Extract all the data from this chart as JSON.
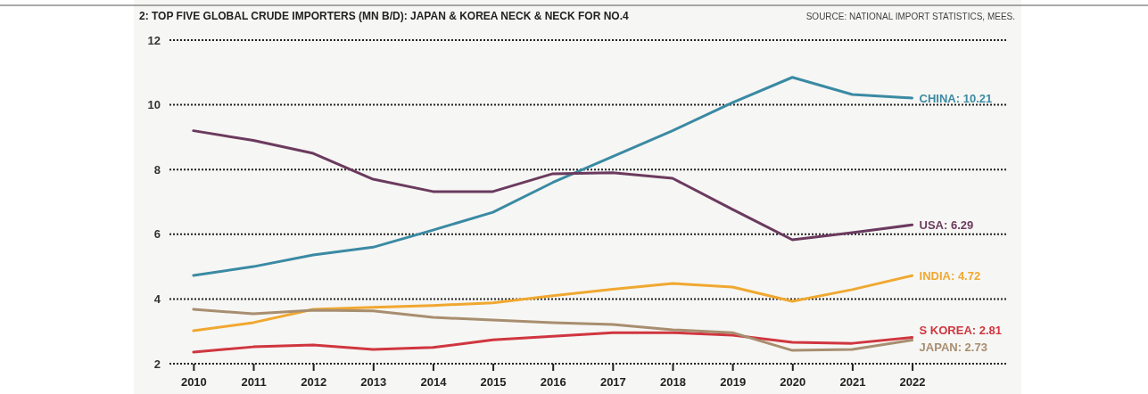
{
  "chart_data": {
    "type": "line",
    "title": "2: TOP FIVE GLOBAL CRUDE IMPORTERS (MN B/D): JAPAN & KOREA NECK & NECK FOR NO.4",
    "annotations": [
      "SOURCE: NATIONAL IMPORT STATISTICS, MEES."
    ],
    "x": [
      2010,
      2011,
      2012,
      2013,
      2014,
      2015,
      2016,
      2017,
      2018,
      2019,
      2020,
      2021,
      2022
    ],
    "xlim": [
      2009.6,
      2023.6
    ],
    "xticks": [
      2010,
      2011,
      2012,
      2013,
      2014,
      2015,
      2016,
      2017,
      2018,
      2019,
      2020,
      2021,
      2022
    ],
    "ylim": [
      2,
      12
    ],
    "yticks": [
      2,
      4,
      6,
      8,
      10,
      12
    ],
    "grid": "y",
    "line_style": "solid",
    "marker": "none",
    "series": [
      {
        "name": "CHINA: 10.21",
        "color": "#3a8aa3",
        "values": [
          4.73,
          5.0,
          5.36,
          5.6,
          6.13,
          6.68,
          7.6,
          8.4,
          9.2,
          10.07,
          10.85,
          10.32,
          10.21
        ]
      },
      {
        "name": "USA: 6.29",
        "color": "#6b3a5e",
        "values": [
          9.2,
          8.9,
          8.5,
          7.7,
          7.32,
          7.32,
          7.87,
          7.9,
          7.73,
          6.77,
          5.83,
          6.05,
          6.29
        ]
      },
      {
        "name": "INDIA: 4.72",
        "color": "#f0a830",
        "values": [
          3.02,
          3.27,
          3.68,
          3.74,
          3.8,
          3.88,
          4.1,
          4.3,
          4.48,
          4.37,
          3.93,
          4.29,
          4.72
        ]
      },
      {
        "name": "S KOREA: 2.81",
        "color": "#d0363f",
        "values": [
          2.36,
          2.52,
          2.58,
          2.44,
          2.5,
          2.74,
          2.85,
          2.96,
          2.96,
          2.88,
          2.66,
          2.63,
          2.81
        ]
      },
      {
        "name": "JAPAN: 2.73",
        "color": "#a88e70",
        "values": [
          3.68,
          3.54,
          3.65,
          3.63,
          3.43,
          3.35,
          3.27,
          3.21,
          3.05,
          2.96,
          2.41,
          2.44,
          2.73
        ]
      }
    ]
  }
}
